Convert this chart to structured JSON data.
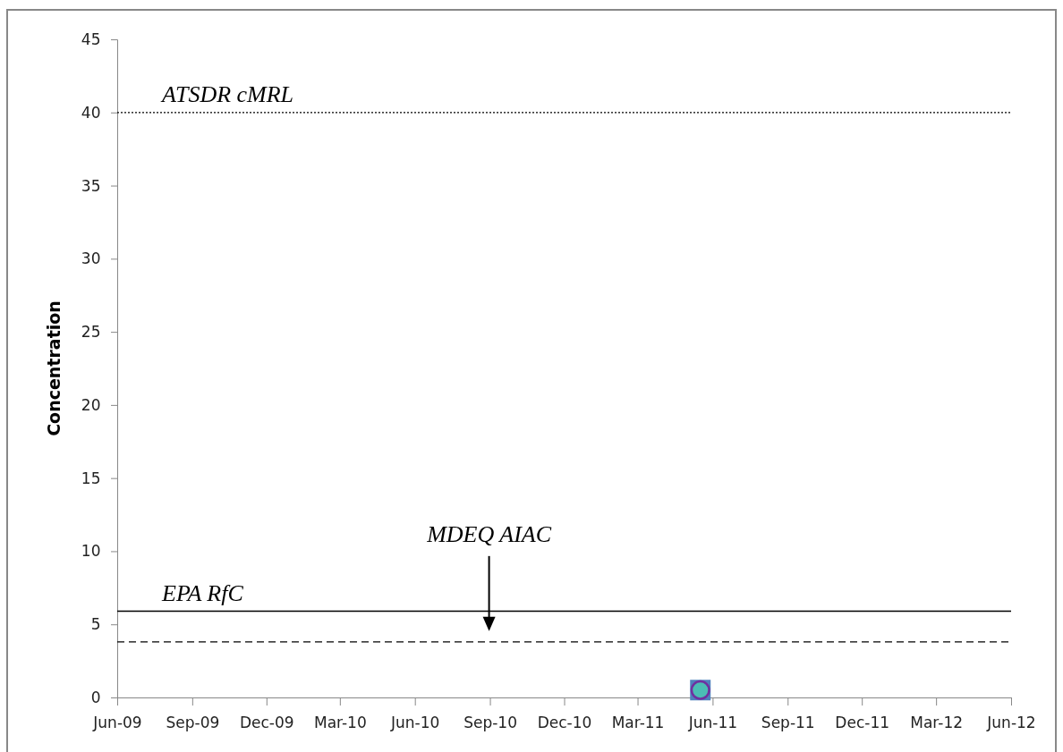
{
  "chart_data": {
    "type": "scatter",
    "ylabel": "Concentration",
    "x": [
      "2011-05-17"
    ],
    "series": [
      {
        "color": "#4f81bd",
        "marker": "square",
        "values": [
          0.5
        ]
      },
      {
        "color": "#4bbdb5",
        "marker": "circle",
        "values": [
          0.5
        ]
      }
    ],
    "xlim": [
      "2009-06-01",
      "2012-06-01"
    ],
    "xticks": [
      {
        "value": "2009-06-01",
        "label": "Jun-09"
      },
      {
        "value": "2009-09-01",
        "label": "Sep-09"
      },
      {
        "value": "2009-12-01",
        "label": "Dec-09"
      },
      {
        "value": "2010-03-01",
        "label": "Mar-10"
      },
      {
        "value": "2010-06-01",
        "label": "Jun-10"
      },
      {
        "value": "2010-09-01",
        "label": "Sep-10"
      },
      {
        "value": "2010-12-01",
        "label": "Dec-10"
      },
      {
        "value": "2011-03-01",
        "label": "Mar-11"
      },
      {
        "value": "2011-06-01",
        "label": "Jun-11"
      },
      {
        "value": "2011-09-01",
        "label": "Sep-11"
      },
      {
        "value": "2011-12-01",
        "label": "Dec-11"
      },
      {
        "value": "2012-03-01",
        "label": "Mar-12"
      },
      {
        "value": "2012-06-01",
        "label": "Jun-12"
      }
    ],
    "ylim": [
      0,
      45
    ],
    "yticks": [
      0,
      5,
      10,
      15,
      20,
      25,
      30,
      35,
      40,
      45
    ],
    "ref_lines": [
      {
        "axis": "y",
        "value": 40,
        "label": "ATSDR cMRL",
        "color": "#000000",
        "line_style": "dotted"
      },
      {
        "axis": "y",
        "value": 5.9,
        "label": "EPA RfC",
        "color": "#000000",
        "line_style": "solid"
      },
      {
        "axis": "y",
        "value": 3.8,
        "color": "#000000",
        "line_style": "dashed"
      }
    ],
    "annotations": [
      "MDEQ AIAC"
    ],
    "grid": false
  }
}
